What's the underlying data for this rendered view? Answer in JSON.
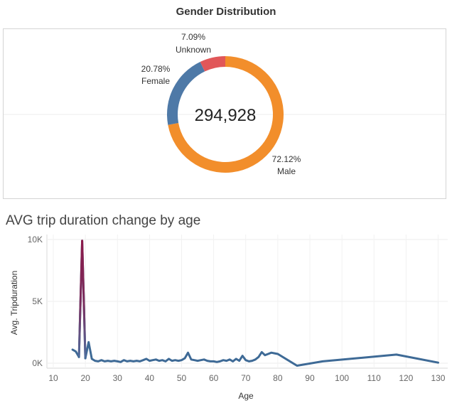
{
  "donut": {
    "title": "Gender Distribution",
    "total_label": "294,928"
  },
  "line_chart": {
    "title": "AVG trip duration change by age"
  },
  "chart_data": [
    {
      "type": "pie",
      "title": "Gender Distribution",
      "center_text": "294,928",
      "slices": [
        {
          "label": "Male",
          "percent": 72.12,
          "pct_label": "72.12%",
          "color": "#F28E2B"
        },
        {
          "label": "Female",
          "percent": 20.78,
          "pct_label": "20.78%",
          "color": "#4E79A7"
        },
        {
          "label": "Unknown",
          "percent": 7.09,
          "pct_label": "7.09%",
          "color": "#E15759"
        }
      ]
    },
    {
      "type": "line",
      "title": "AVG trip duration change by age",
      "xlabel": "Age",
      "ylabel": "Avg. Tripduration",
      "xlim": [
        8,
        133
      ],
      "ylim": [
        -400,
        10400
      ],
      "xticks": [
        10,
        20,
        30,
        40,
        50,
        60,
        70,
        80,
        90,
        100,
        110,
        120,
        130
      ],
      "yticks": [
        {
          "value": 0,
          "label": "0K"
        },
        {
          "value": 5000,
          "label": "5K"
        },
        {
          "value": 10000,
          "label": "10K"
        }
      ],
      "grid": true,
      "highlight_color": "#8B1A4A",
      "line_color": "#3E6A96",
      "x": [
        16,
        17,
        18,
        19,
        20,
        21,
        22,
        23,
        24,
        25,
        26,
        27,
        28,
        29,
        30,
        31,
        32,
        33,
        34,
        35,
        36,
        37,
        38,
        39,
        40,
        41,
        42,
        43,
        44,
        45,
        46,
        47,
        48,
        49,
        50,
        51,
        52,
        53,
        54,
        55,
        56,
        57,
        58,
        59,
        60,
        61,
        62,
        63,
        64,
        65,
        66,
        67,
        68,
        69,
        70,
        71,
        72,
        73,
        74,
        75,
        76,
        77,
        78,
        79,
        80,
        86,
        94,
        117,
        130
      ],
      "y": [
        1100,
        950,
        500,
        9900,
        400,
        1700,
        350,
        200,
        150,
        250,
        150,
        200,
        150,
        200,
        150,
        100,
        250,
        150,
        200,
        150,
        200,
        150,
        250,
        350,
        200,
        250,
        300,
        200,
        250,
        150,
        350,
        200,
        250,
        200,
        250,
        400,
        850,
        300,
        250,
        200,
        250,
        300,
        200,
        150,
        150,
        100,
        150,
        250,
        200,
        300,
        150,
        350,
        200,
        600,
        250,
        150,
        200,
        300,
        500,
        900,
        650,
        750,
        850,
        800,
        750,
        -200,
        150,
        700,
        50
      ]
    }
  ]
}
